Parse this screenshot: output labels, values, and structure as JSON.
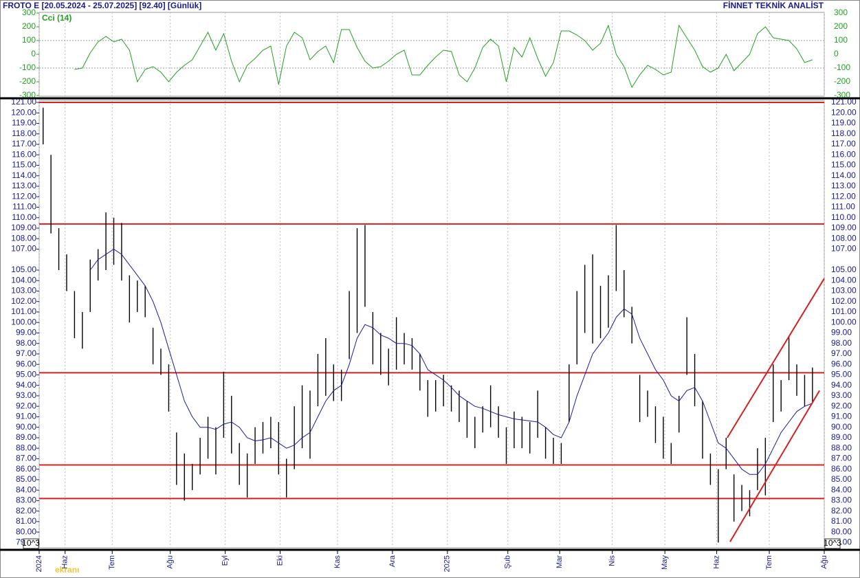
{
  "header": {
    "left": "FROTO E  [20.05.2024 - 25.07.2025]  [92.40]  [Günlük]",
    "right": "FİNNET TEKNİK ANALİST",
    "watermark": "ekranı",
    "scale_note": "10^3"
  },
  "chart_data": [
    {
      "type": "line",
      "title": "Cci (14)",
      "color": "#22a022",
      "ylim": [
        -305,
        305
      ],
      "yticks": [
        300,
        200,
        100,
        0,
        -100,
        -200,
        -300
      ],
      "reference_lines": [
        100,
        -100
      ],
      "xlim": [
        0,
        100
      ],
      "series": [
        {
          "color": "#22a022",
          "values": [
            null,
            null,
            null,
            null,
            -110,
            -100,
            10,
            90,
            130,
            90,
            110,
            30,
            -200,
            -110,
            -90,
            -130,
            -200,
            -130,
            -80,
            -40,
            60,
            160,
            30,
            150,
            -50,
            -200,
            -80,
            -30,
            30,
            60,
            -220,
            60,
            160,
            120,
            -40,
            20,
            60,
            -60,
            180,
            180,
            50,
            -50,
            -100,
            -90,
            -50,
            0,
            30,
            -150,
            -150,
            -80,
            -20,
            30,
            20,
            -150,
            -200,
            -100,
            50,
            110,
            60,
            -200,
            50,
            -20,
            120,
            -30,
            -160,
            -60,
            170,
            170,
            140,
            100,
            30,
            80,
            210,
            0,
            -90,
            -240,
            -150,
            -80,
            -110,
            -150,
            -130,
            210,
            120,
            30,
            -90,
            -130,
            -100,
            0,
            -120,
            -60,
            0,
            150,
            200,
            120,
            110,
            100,
            40,
            -60,
            -40
          ]
        }
      ]
    },
    {
      "type": "ohlc",
      "color": "#000000",
      "ylim": [
        78.5,
        121.2
      ],
      "xlim": [
        0,
        100
      ],
      "grid": true,
      "yticks": [
        {
          "value": 121,
          "label": "121.00"
        },
        {
          "value": 120,
          "label": "120.00"
        },
        {
          "value": 119,
          "label": "119.00"
        },
        {
          "value": 118,
          "label": "118.00"
        },
        {
          "value": 117,
          "label": "117.00"
        },
        {
          "value": 116,
          "label": "116.00"
        },
        {
          "value": 115,
          "label": "115.00"
        },
        {
          "value": 114,
          "label": "114.00"
        },
        {
          "value": 113,
          "label": "113.00"
        },
        {
          "value": 112,
          "label": "112.00"
        },
        {
          "value": 111,
          "label": "111.00"
        },
        {
          "value": 110,
          "label": "110.00"
        },
        {
          "value": 109,
          "label": "109.00"
        },
        {
          "value": 108,
          "label": "108.00"
        },
        {
          "value": 107,
          "label": "107.00"
        },
        {
          "value": 105,
          "label": "105.00"
        },
        {
          "value": 104,
          "label": "104.00"
        },
        {
          "value": 103,
          "label": "103.00"
        },
        {
          "value": 102,
          "label": "102.00"
        },
        {
          "value": 101,
          "label": "101.00"
        },
        {
          "value": 100,
          "label": "100.00"
        },
        {
          "value": 99,
          "label": "99.00"
        },
        {
          "value": 98,
          "label": "98.00"
        },
        {
          "value": 97,
          "label": "97.00"
        },
        {
          "value": 96,
          "label": "96.00"
        },
        {
          "value": 95,
          "label": "95.00"
        },
        {
          "value": 94,
          "label": "94.00"
        },
        {
          "value": 93,
          "label": "93.00"
        },
        {
          "value": 92,
          "label": "92.00"
        },
        {
          "value": 91,
          "label": "91.00"
        },
        {
          "value": 90,
          "label": "90.00"
        },
        {
          "value": 89,
          "label": "89.00"
        },
        {
          "value": 88,
          "label": "88.00"
        },
        {
          "value": 87,
          "label": "87.00"
        },
        {
          "value": 86,
          "label": "86.00"
        },
        {
          "value": 85,
          "label": "85.00"
        },
        {
          "value": 84,
          "label": "84.00"
        },
        {
          "value": 83,
          "label": "83.00"
        },
        {
          "value": 82,
          "label": "82.00"
        },
        {
          "value": 81,
          "label": "81.00"
        },
        {
          "value": 80,
          "label": "80.00"
        },
        {
          "value": 79,
          "label": "79.00"
        }
      ],
      "xticks": [
        {
          "value": 0,
          "label": "2024"
        },
        {
          "value": 3.3,
          "label": "Haz"
        },
        {
          "value": 9.3,
          "label": "Tem"
        },
        {
          "value": 16.7,
          "label": "Ağu"
        },
        {
          "value": 23.7,
          "label": "Eyl"
        },
        {
          "value": 30.7,
          "label": "Eki"
        },
        {
          "value": 38,
          "label": "Kas"
        },
        {
          "value": 45,
          "label": "Ara"
        },
        {
          "value": 52,
          "label": "2025"
        },
        {
          "value": 59.7,
          "label": "Şub"
        },
        {
          "value": 66.3,
          "label": "Mar"
        },
        {
          "value": 73,
          "label": "Nis"
        },
        {
          "value": 79.7,
          "label": "May"
        },
        {
          "value": 86.3,
          "label": "Haz"
        },
        {
          "value": 93,
          "label": "Tem"
        },
        {
          "value": 100,
          "label": "Ağu"
        }
      ],
      "high": [
        120.5,
        116,
        109,
        106.5,
        103,
        101,
        106,
        107,
        110.5,
        110,
        109.5,
        104.5,
        104,
        103.5,
        99.5,
        97.5,
        96,
        89.5,
        87.5,
        86.5,
        89,
        91,
        90,
        95.3,
        93,
        88.5,
        87.5,
        90,
        90.5,
        91,
        90.5,
        87,
        92,
        94,
        93.5,
        97,
        98.5,
        96,
        95.5,
        103,
        109,
        109.3,
        101,
        99,
        97.5,
        100.5,
        99,
        98.5,
        97,
        94.5,
        94.5,
        95,
        94,
        93.5,
        92.5,
        91,
        92,
        94,
        92,
        90,
        91.5,
        91,
        90.5,
        93.5,
        90,
        89,
        88.5,
        96,
        103,
        105.5,
        106.5,
        103.5,
        104.5,
        109.3,
        105,
        101.5,
        95,
        93.5,
        92,
        91,
        88.5,
        93,
        100.5,
        97,
        92.5,
        87.5,
        86,
        89,
        85.5,
        84.5,
        84,
        88,
        89,
        96,
        94.5,
        98.7,
        96,
        95,
        95.7
      ],
      "low": [
        117,
        108.5,
        105,
        103,
        98.5,
        97.5,
        101,
        104,
        105,
        105.5,
        104,
        100,
        101,
        100.5,
        96,
        95,
        91.5,
        84.5,
        83,
        84,
        85.5,
        87,
        85.5,
        89,
        87.5,
        84.5,
        83.3,
        86.5,
        87.5,
        88,
        85.5,
        83.3,
        86,
        88,
        87,
        92,
        93,
        92.5,
        92.5,
        96.5,
        99,
        101.5,
        96,
        95,
        94,
        95.5,
        96,
        95.5,
        93.5,
        91,
        91.5,
        92,
        91.5,
        90.5,
        89,
        88,
        89.5,
        90,
        89,
        86.5,
        88,
        88,
        87.5,
        89,
        87,
        86.5,
        86.5,
        90.5,
        96,
        99,
        98,
        98.5,
        99.5,
        103,
        100.5,
        98,
        90.5,
        91,
        88.5,
        87,
        86.5,
        89.5,
        95,
        92,
        87,
        84.5,
        79,
        86,
        81,
        82,
        81.5,
        84,
        83.5,
        90.5,
        91.5,
        94.5,
        93,
        92,
        92.4
      ],
      "moving_average": {
        "color": "#1a1aa0",
        "values": [
          null,
          null,
          null,
          null,
          null,
          null,
          105,
          106,
          106.5,
          107,
          106.5,
          105.5,
          104.5,
          103.5,
          102,
          100,
          97.5,
          95,
          92.5,
          91,
          90,
          90,
          89.8,
          90.3,
          90.5,
          90,
          89,
          88.7,
          88.8,
          89,
          88.5,
          88,
          88.3,
          89,
          89.5,
          91,
          92.5,
          93.5,
          94,
          96,
          98.5,
          99.8,
          99.5,
          98.8,
          98.5,
          98,
          98,
          97.8,
          97,
          95.5,
          95,
          94.5,
          93.8,
          93,
          92.5,
          92,
          91.8,
          91.5,
          91.2,
          91,
          90.8,
          90.7,
          90.6,
          90.5,
          90,
          89.3,
          89,
          90.5,
          93,
          95,
          97,
          98,
          99,
          100.5,
          101.3,
          100.8,
          98.5,
          97,
          95.5,
          94.5,
          93,
          92.5,
          93.5,
          93.8,
          92.5,
          90.5,
          88.5,
          88,
          87,
          86,
          85.5,
          85.5,
          86.5,
          88,
          89.5,
          90.5,
          91.5,
          92,
          92.3
        ]
      },
      "hlines": {
        "color": "#d42020",
        "values": [
          121,
          109.4,
          95.2,
          86.4,
          83.2
        ]
      },
      "trendlines": {
        "color": "#d42020",
        "lines": [
          {
            "x": [
              88,
              99.4
            ],
            "y": [
              79.07,
              93.5
            ]
          },
          {
            "x": [
              87.65,
              100
            ],
            "y": [
              89,
              104.2
            ]
          }
        ]
      }
    }
  ]
}
